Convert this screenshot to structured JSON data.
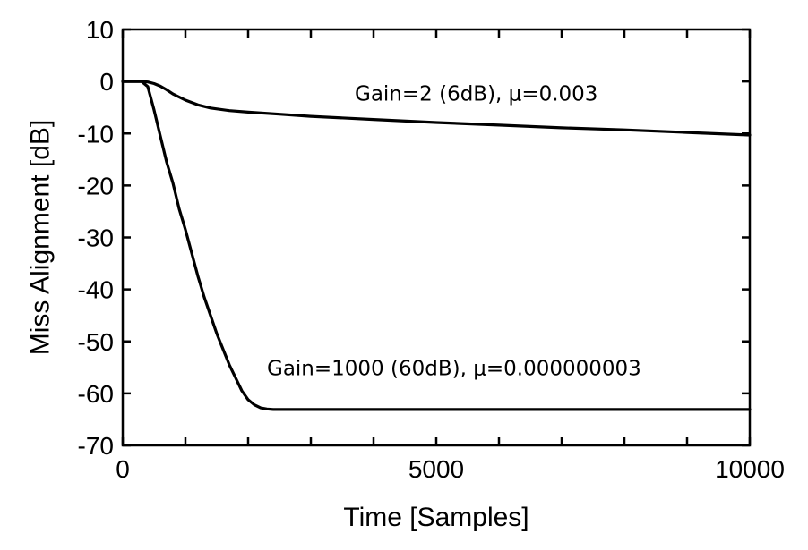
{
  "chart_data": {
    "type": "line",
    "title": "",
    "xlabel": "Time [Samples]",
    "ylabel": "Miss Alignment [dB]",
    "xlim": [
      0,
      10000
    ],
    "ylim": [
      -70,
      10
    ],
    "xticks": [
      0,
      5000,
      10000
    ],
    "xtick_labels": [
      "0",
      "5000",
      "10000"
    ],
    "yticks": [
      10,
      0,
      -10,
      -20,
      -30,
      -40,
      -50,
      -60,
      -70
    ],
    "ytick_labels": [
      "10",
      "0",
      "-10",
      "-20",
      "-30",
      "-40",
      "-50",
      "-60",
      "-70"
    ],
    "grid": false,
    "legend": "none",
    "series": [
      {
        "color": "#000000",
        "x": [
          0,
          300,
          400,
          500,
          600,
          700,
          800,
          1000,
          1200,
          1400,
          1700,
          2000,
          2500,
          3000,
          4000,
          5000,
          6000,
          7000,
          8000,
          9000,
          10000
        ],
        "y": [
          0,
          0,
          -0.1,
          -0.4,
          -0.9,
          -1.6,
          -2.4,
          -3.6,
          -4.5,
          -5.1,
          -5.6,
          -5.9,
          -6.3,
          -6.7,
          -7.3,
          -7.9,
          -8.4,
          -8.9,
          -9.3,
          -9.8,
          -10.3
        ]
      },
      {
        "color": "#000000",
        "x": [
          0,
          300,
          400,
          500,
          600,
          700,
          800,
          900,
          1000,
          1100,
          1200,
          1300,
          1400,
          1500,
          1600,
          1700,
          1800,
          1900,
          2000,
          2100,
          2200,
          2300,
          2400,
          2600,
          3000,
          4000,
          6000,
          8000,
          10000
        ],
        "y": [
          0,
          0,
          -1.0,
          -5.5,
          -10.5,
          -15.5,
          -19.5,
          -24.5,
          -28.5,
          -33,
          -37.5,
          -41.5,
          -45,
          -48.5,
          -51.5,
          -54.5,
          -57,
          -59.5,
          -61.2,
          -62.2,
          -62.8,
          -63.0,
          -63.1,
          -63.1,
          -63.1,
          -63.1,
          -63.1,
          -63.1,
          -63.1
        ]
      }
    ],
    "annotations": [
      {
        "text": "Gain=2 (6dB), μ=0.003",
        "x": 3700,
        "y": -3.7
      },
      {
        "text": "Gain=1000 (60dB), μ=0.000000003",
        "x": 2300,
        "y": -56.5
      }
    ]
  }
}
